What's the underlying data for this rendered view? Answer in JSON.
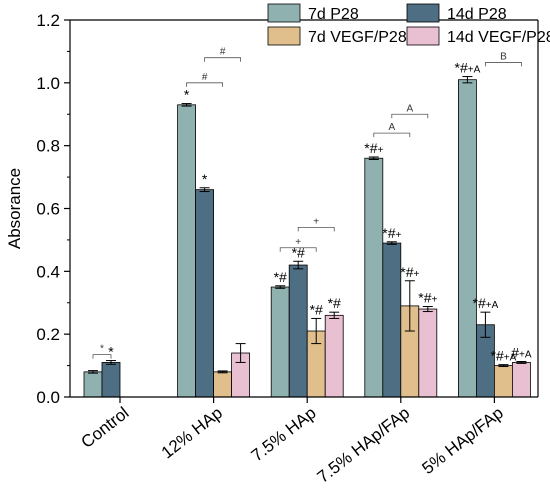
{
  "chart_data": {
    "type": "bar",
    "ylabel": "Absorance",
    "xlabel": "",
    "ylim": [
      0,
      1.2
    ],
    "yticks": [
      "0.0",
      "0.2",
      "0.4",
      "0.6",
      "0.8",
      "1.0",
      "1.2"
    ],
    "ytick_values": [
      0,
      0.2,
      0.4,
      0.6,
      0.8,
      1.0,
      1.2
    ],
    "categories": [
      "Control",
      "12% HAp",
      "7.5% HAp",
      "7.5% HAp/FAp",
      "5% HAp/FAp"
    ],
    "legend_position": "top-right",
    "series": [
      {
        "name": "7d P28",
        "color": "#8fb2b0",
        "values": [
          0.08,
          0.93,
          0.35,
          0.76,
          1.01
        ],
        "errors": [
          0.004,
          0.004,
          0.004,
          0.004,
          0.01
        ]
      },
      {
        "name": "14d P28",
        "color": "#4e6e83",
        "values": [
          0.11,
          0.66,
          0.42,
          0.49,
          0.23
        ],
        "errors": [
          0.006,
          0.006,
          0.012,
          0.004,
          0.04
        ]
      },
      {
        "name": "7d VEGF/P28",
        "color": "#e0bf8c",
        "values": [
          null,
          0.08,
          0.21,
          0.29,
          0.1
        ],
        "errors": [
          0,
          0.003,
          0.04,
          0.08,
          0.003
        ]
      },
      {
        "name": "14d VEGF/P28",
        "color": "#e9bfd2",
        "values": [
          null,
          0.14,
          0.26,
          0.28,
          0.11
        ],
        "errors": [
          0,
          0.03,
          0.01,
          0.008,
          0.003
        ]
      }
    ],
    "annotations": [
      {
        "cat": 0,
        "series": 1,
        "text": "*"
      },
      {
        "cat": 1,
        "series": 0,
        "text": "*"
      },
      {
        "cat": 1,
        "series": 1,
        "text": "*"
      },
      {
        "cat": 2,
        "series": 0,
        "text": "*#"
      },
      {
        "cat": 2,
        "series": 1,
        "text": "*#"
      },
      {
        "cat": 2,
        "series": 2,
        "text": "*#"
      },
      {
        "cat": 2,
        "series": 3,
        "text": "*#"
      },
      {
        "cat": 3,
        "series": 0,
        "text": "*#+"
      },
      {
        "cat": 3,
        "series": 1,
        "text": "*#+"
      },
      {
        "cat": 3,
        "series": 2,
        "text": "*#+"
      },
      {
        "cat": 3,
        "series": 3,
        "text": "*#+"
      },
      {
        "cat": 4,
        "series": 0,
        "text": "*#+A"
      },
      {
        "cat": 4,
        "series": 1,
        "text": "*#+A"
      },
      {
        "cat": 4,
        "series": 2,
        "text": "*#+A"
      },
      {
        "cat": 4,
        "series": 3,
        "text": "#+A"
      }
    ],
    "brackets": [
      {
        "cat": 0,
        "from": 0,
        "to": 1,
        "level": 0.135,
        "text": "*"
      },
      {
        "cat": 1,
        "from": 0,
        "to": 2,
        "level": 1.0,
        "text": "#"
      },
      {
        "cat": 1,
        "from": 1,
        "to": 3,
        "level": 1.08,
        "text": "#"
      },
      {
        "cat": 2,
        "from": 0,
        "to": 2,
        "level": 0.475,
        "text": "+"
      },
      {
        "cat": 2,
        "from": 1,
        "to": 3,
        "level": 0.54,
        "text": "+"
      },
      {
        "cat": 3,
        "from": 0,
        "to": 2,
        "level": 0.84,
        "text": "A"
      },
      {
        "cat": 3,
        "from": 1,
        "to": 3,
        "level": 0.9,
        "text": "A"
      },
      {
        "cat": 4,
        "from": 1,
        "to": 3,
        "level": 1.065,
        "text": "B"
      }
    ]
  }
}
